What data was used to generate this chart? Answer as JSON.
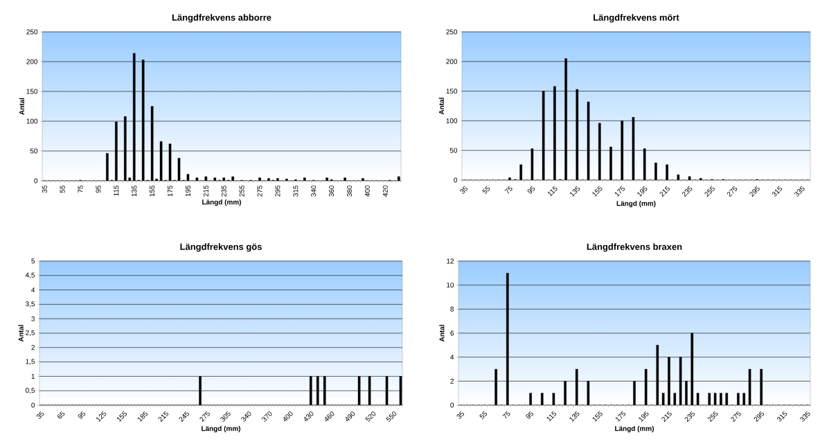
{
  "chart_data": [
    {
      "type": "bar",
      "title": "Längdfrekvens abborre",
      "xlabel": "Längd (mm)",
      "ylabel": "Antal",
      "color": "#000000",
      "grid": "y",
      "ylim": [
        0,
        250
      ],
      "yticks": [
        0,
        50,
        100,
        150,
        200,
        250
      ],
      "categories": [
        "35",
        null,
        null,
        null,
        "55",
        null,
        null,
        null,
        "75",
        null,
        null,
        null,
        "95",
        null,
        null,
        null,
        "115",
        null,
        null,
        null,
        "135",
        null,
        null,
        null,
        "155",
        null,
        null,
        null,
        "175",
        null,
        null,
        null,
        "195",
        null,
        null,
        null,
        "215",
        null,
        null,
        null,
        "235",
        null,
        null,
        null,
        "255",
        null,
        null,
        null,
        "275",
        null,
        null,
        null,
        "295",
        null,
        null,
        null,
        "315",
        null,
        null,
        null,
        "340",
        null,
        null,
        null,
        "360",
        null,
        null,
        null,
        "380",
        null,
        null,
        null,
        "400",
        null,
        null,
        null,
        "420",
        null,
        null,
        null
      ],
      "values": [
        0,
        0,
        0,
        0,
        0,
        0,
        0,
        0,
        1,
        0,
        0,
        0,
        0,
        0,
        46,
        1,
        99,
        0,
        108,
        5,
        214,
        1,
        203,
        1,
        125,
        3,
        66,
        1,
        62,
        1,
        38,
        1,
        11,
        0,
        5,
        0,
        7,
        0,
        5,
        1,
        5,
        1,
        7,
        0,
        1,
        0,
        1,
        0,
        5,
        0,
        4,
        1,
        4,
        0,
        3,
        0,
        2,
        0,
        5,
        0,
        1,
        0,
        0,
        5,
        2,
        0,
        0,
        5,
        0,
        0,
        0,
        4,
        0,
        0,
        0,
        0,
        0,
        1,
        0,
        7
      ]
    },
    {
      "type": "bar",
      "title": "Längdfrekvens mört",
      "xlabel": "Längd (mm)",
      "ylabel": "Antal",
      "color": "#000000",
      "grid": "y",
      "ylim": [
        0,
        250
      ],
      "yticks": [
        0,
        50,
        100,
        150,
        200,
        250
      ],
      "categories": [
        "35",
        null,
        null,
        null,
        "55",
        null,
        null,
        null,
        "75",
        null,
        null,
        null,
        "95",
        null,
        null,
        null,
        "115",
        null,
        null,
        null,
        "135",
        null,
        null,
        null,
        "155",
        null,
        null,
        null,
        "175",
        null,
        null,
        null,
        "195",
        null,
        null,
        null,
        "215",
        null,
        null,
        null,
        "235",
        null,
        null,
        null,
        "255",
        null,
        null,
        null,
        "275",
        null,
        null,
        null,
        "295",
        null,
        null,
        null,
        "315",
        null,
        null,
        null,
        "335",
        null
      ],
      "values": [
        0,
        0,
        0,
        0,
        0,
        0,
        0,
        0,
        4,
        1,
        26,
        0,
        53,
        0,
        150,
        0,
        158,
        1,
        205,
        0,
        153,
        0,
        132,
        0,
        96,
        0,
        56,
        0,
        100,
        0,
        106,
        0,
        53,
        0,
        29,
        0,
        26,
        0,
        9,
        0,
        6,
        0,
        3,
        0,
        1,
        0,
        1,
        0,
        0,
        0,
        0,
        0,
        1,
        0,
        0,
        0,
        0,
        0,
        0,
        0,
        0,
        0
      ]
    },
    {
      "type": "bar",
      "title": "Längdfrekvens gös",
      "xlabel": "Längd (mm)",
      "ylabel": "Antal",
      "color": "#000000",
      "grid": "y",
      "ylim": [
        0,
        5
      ],
      "yticks": [
        0,
        {
          "value": 0.5,
          "label": "0,5"
        },
        1,
        {
          "value": 1.5,
          "label": "1,5"
        },
        2,
        {
          "value": 2.5,
          "label": "2,5"
        },
        3,
        {
          "value": 3.5,
          "label": "3,5"
        },
        4,
        {
          "value": 4.5,
          "label": "4,5"
        },
        5
      ],
      "categories": [
        "35",
        null,
        null,
        null,
        null,
        null,
        "65",
        null,
        null,
        null,
        null,
        null,
        "95",
        null,
        null,
        null,
        null,
        null,
        "125",
        null,
        null,
        null,
        null,
        null,
        "155",
        null,
        null,
        null,
        null,
        null,
        "185",
        null,
        null,
        null,
        null,
        null,
        "215",
        null,
        null,
        null,
        null,
        null,
        "245",
        null,
        null,
        null,
        null,
        null,
        "275",
        null,
        null,
        null,
        null,
        null,
        "305",
        null,
        null,
        null,
        null,
        null,
        "340",
        null,
        null,
        null,
        null,
        null,
        "370",
        null,
        null,
        null,
        null,
        null,
        "400",
        null,
        null,
        null,
        null,
        null,
        "430",
        null,
        null,
        null,
        null,
        null,
        "460",
        null,
        null,
        null,
        null,
        null,
        "490",
        null,
        null,
        null,
        null,
        null,
        "520",
        null,
        null,
        null,
        null,
        null,
        "550",
        null,
        null
      ],
      "values": [
        0,
        0,
        0,
        0,
        0,
        0,
        0,
        0,
        0,
        0,
        0,
        0,
        0,
        0,
        0,
        0,
        0,
        0,
        0,
        0,
        0,
        0,
        0,
        0,
        0,
        0,
        0,
        0,
        0,
        0,
        0,
        0,
        0,
        0,
        0,
        0,
        0,
        0,
        0,
        0,
        0,
        0,
        0,
        0,
        0,
        0,
        1,
        0,
        0,
        0,
        0,
        0,
        0,
        0,
        0,
        0,
        0,
        0,
        0,
        0,
        0,
        0,
        0,
        0,
        0,
        0,
        0,
        0,
        0,
        0,
        0,
        0,
        0,
        0,
        0,
        0,
        0,
        0,
        1,
        0,
        1,
        0,
        1,
        0,
        0,
        0,
        0,
        0,
        0,
        0,
        0,
        0,
        1,
        0,
        0,
        1,
        0,
        0,
        0,
        0,
        1,
        0,
        0,
        0,
        1
      ]
    },
    {
      "type": "bar",
      "title": "Längdfrekvens braxen",
      "xlabel": "Längd (mm)",
      "ylabel": "Antal",
      "color": "#000000",
      "grid": "y",
      "ylim": [
        0,
        12
      ],
      "yticks": [
        0,
        2,
        4,
        6,
        8,
        10,
        12
      ],
      "categories": [
        "35",
        null,
        null,
        null,
        "55",
        null,
        null,
        null,
        "75",
        null,
        null,
        null,
        "95",
        null,
        null,
        null,
        "115",
        null,
        null,
        null,
        "135",
        null,
        null,
        null,
        "155",
        null,
        null,
        null,
        "175",
        null,
        null,
        null,
        "195",
        null,
        null,
        null,
        "215",
        null,
        null,
        null,
        "235",
        null,
        null,
        null,
        "255",
        null,
        null,
        null,
        "275",
        null,
        null,
        null,
        "295",
        null,
        null,
        null,
        "315",
        null,
        null,
        null,
        "335"
      ],
      "values": [
        0,
        0,
        0,
        0,
        0,
        0,
        3,
        0,
        11,
        0,
        0,
        0,
        1,
        0,
        1,
        0,
        1,
        0,
        2,
        0,
        3,
        0,
        2,
        0,
        0,
        0,
        0,
        0,
        0,
        0,
        2,
        0,
        3,
        0,
        5,
        1,
        4,
        1,
        4,
        2,
        6,
        1,
        0,
        1,
        1,
        1,
        1,
        0,
        1,
        1,
        3,
        0,
        3,
        0,
        0,
        0,
        0,
        0,
        0,
        0,
        0
      ]
    }
  ]
}
